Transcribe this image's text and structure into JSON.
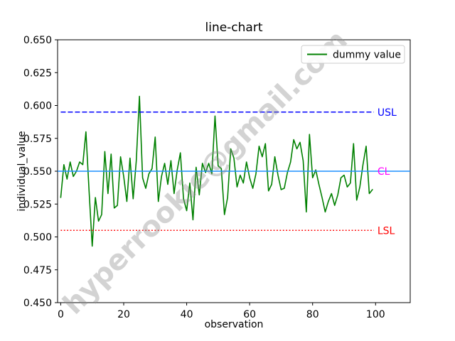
{
  "chart_data": {
    "type": "line",
    "title": "line-chart",
    "xlabel": "observation",
    "ylabel": "individual_value",
    "xlim": [
      -1,
      111
    ],
    "ylim": [
      0.45,
      0.65
    ],
    "x_ticks": [
      0,
      20,
      40,
      60,
      80,
      100
    ],
    "y_tick_labels": [
      "0.450",
      "0.475",
      "0.500",
      "0.525",
      "0.550",
      "0.575",
      "0.600",
      "0.625",
      "0.650"
    ],
    "grid": false,
    "legend": {
      "position": "upper right",
      "entries": [
        {
          "label": "dummy value",
          "color": "#008000"
        }
      ]
    },
    "series": [
      {
        "name": "dummy value",
        "color": "#008000",
        "x_start": 0,
        "values": [
          0.53,
          0.555,
          0.544,
          0.557,
          0.546,
          0.55,
          0.557,
          0.555,
          0.58,
          0.535,
          0.493,
          0.53,
          0.512,
          0.517,
          0.565,
          0.533,
          0.563,
          0.522,
          0.524,
          0.561,
          0.546,
          0.527,
          0.56,
          0.529,
          0.558,
          0.607,
          0.545,
          0.537,
          0.548,
          0.552,
          0.576,
          0.527,
          0.546,
          0.556,
          0.54,
          0.558,
          0.533,
          0.551,
          0.564,
          0.529,
          0.52,
          0.541,
          0.513,
          0.553,
          0.532,
          0.556,
          0.549,
          0.556,
          0.548,
          0.592,
          0.554,
          0.552,
          0.517,
          0.53,
          0.567,
          0.56,
          0.538,
          0.547,
          0.541,
          0.557,
          0.545,
          0.537,
          0.548,
          0.569,
          0.561,
          0.571,
          0.535,
          0.54,
          0.561,
          0.547,
          0.536,
          0.537,
          0.549,
          0.557,
          0.574,
          0.567,
          0.572,
          0.558,
          0.519,
          0.578,
          0.545,
          0.551,
          0.54,
          0.53,
          0.519,
          0.527,
          0.533,
          0.524,
          0.532,
          0.545,
          0.547,
          0.538,
          0.541,
          0.571,
          0.528,
          0.538,
          0.555,
          0.569,
          0.533,
          0.536
        ]
      }
    ],
    "ref_lines": [
      {
        "name": "USL",
        "label": "USL",
        "value": 0.595,
        "color": "#0000ff",
        "label_color": "#0000ff",
        "style": "dashed",
        "span": "data"
      },
      {
        "name": "CL",
        "label": "CL",
        "value": 0.55,
        "color": "#1e90ff",
        "label_color": "#ff00ff",
        "style": "solid",
        "span": "full"
      },
      {
        "name": "LSL",
        "label": "LSL",
        "value": 0.505,
        "color": "#ff0000",
        "label_color": "#ff0000",
        "style": "dotted",
        "span": "data"
      }
    ],
    "watermark": "hyperrookie@gmail.com",
    "watermark_color": "#8c8c8c"
  }
}
